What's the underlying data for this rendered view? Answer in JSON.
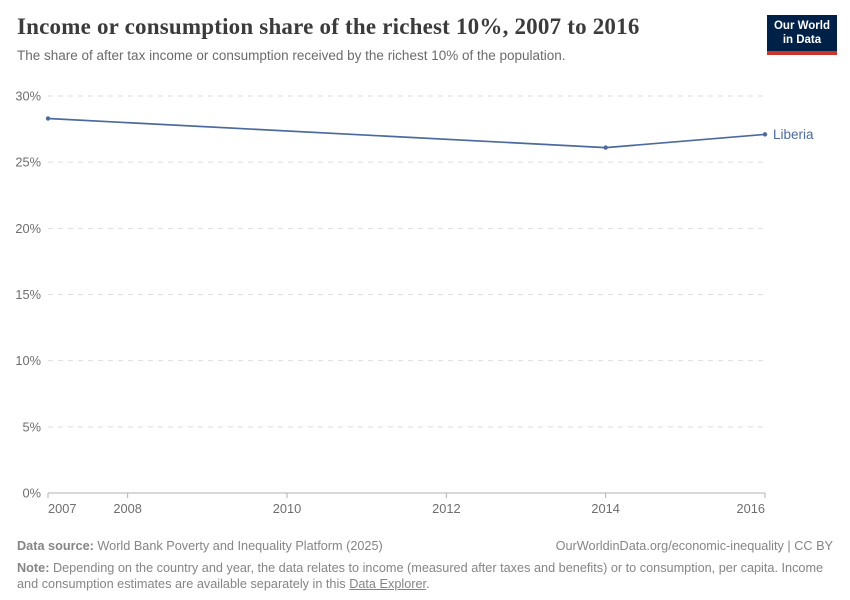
{
  "header": {
    "title": "Income or consumption share of the richest 10%, 2007 to 2016",
    "subtitle": "The share of after tax income or consumption received by the richest 10% of the population.",
    "logo": {
      "line1": "Our World",
      "line2": "in Data",
      "bg_color": "#002147",
      "accent_color": "#C7352C"
    }
  },
  "chart_data": {
    "type": "line",
    "title": "Income or consumption share of the richest 10%, 2007 to 2016",
    "xlabel": "",
    "ylabel": "",
    "xlim": [
      2007,
      2016
    ],
    "ylim": [
      0,
      30
    ],
    "x_ticks": [
      "2007",
      "2008",
      "2010",
      "2012",
      "2014",
      "2016"
    ],
    "x_tick_values": [
      2007,
      2008,
      2010,
      2012,
      2014,
      2016
    ],
    "y_ticks": [
      "0%",
      "5%",
      "10%",
      "15%",
      "20%",
      "25%",
      "30%"
    ],
    "y_tick_values": [
      0,
      5,
      10,
      15,
      20,
      25,
      30
    ],
    "grid": "horizontal-dashed",
    "legend_position": "end-of-line-label",
    "series": [
      {
        "name": "Liberia",
        "color": "#4C6A9E",
        "points": [
          {
            "x": 2007,
            "y": 28.3
          },
          {
            "x": 2014,
            "y": 26.1
          },
          {
            "x": 2016,
            "y": 27.1
          }
        ]
      }
    ],
    "colors": {
      "gridline": "#dedede",
      "axis_line": "#b0b0b0",
      "tick_label": "#6e6e6e"
    }
  },
  "footer": {
    "source_label": "Data source:",
    "source_text": "World Bank Poverty and Inequality Platform (2025)",
    "license_text": "OurWorldinData.org/economic-inequality | CC BY",
    "note_label": "Note:",
    "note_text": "Depending on the country and year, the data relates to income (measured after taxes and benefits) or to consumption, per capita. Income and consumption estimates are available separately in this ",
    "note_link_text": "Data Explorer",
    "note_suffix": "."
  }
}
